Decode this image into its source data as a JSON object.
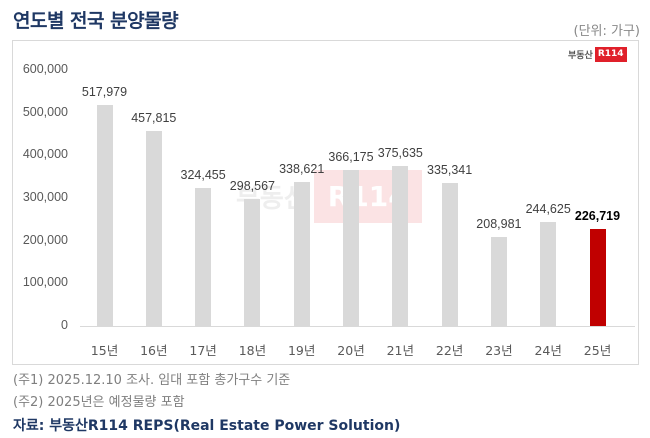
{
  "header": {
    "title": "연도별 전국 분양물량",
    "unit": "(단위: 가구)"
  },
  "logo": {
    "korean": "부동산",
    "badge": "R114"
  },
  "colors": {
    "bar_default": "#d9d9d9",
    "bar_highlight": "#c00000",
    "title": "#1f3864"
  },
  "chart_data": {
    "type": "bar",
    "title": "연도별 전국 분양물량",
    "unit": "가구",
    "categories": [
      "15년",
      "16년",
      "17년",
      "18년",
      "19년",
      "20년",
      "21년",
      "22년",
      "23년",
      "24년",
      "25년"
    ],
    "values": [
      517979,
      457815,
      324455,
      298567,
      338621,
      366175,
      375635,
      335341,
      208981,
      244625,
      226719
    ],
    "value_labels": [
      "517,979",
      "457,815",
      "324,455",
      "298,567",
      "338,621",
      "366,175",
      "375,635",
      "335,341",
      "208,981",
      "244,625",
      "226,719"
    ],
    "highlight_index": 10,
    "xlabel": "",
    "ylabel": "",
    "ylim": [
      0,
      600000
    ],
    "yticks": [
      "0",
      "100,000",
      "200,000",
      "300,000",
      "400,000",
      "500,000",
      "600,000"
    ],
    "grid": false,
    "legend": "none"
  },
  "footer": {
    "notes": [
      "(주1) 2025.12.10 조사. 임대 포함 총가구수 기준",
      "(주2) 2025년은 예정물량 포함"
    ],
    "source": "자료: 부동산R114 REPS(Real Estate Power Solution)"
  }
}
